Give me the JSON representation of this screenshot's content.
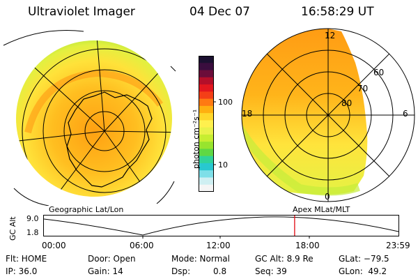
{
  "header": {
    "instrument": "Ultraviolet Imager",
    "date": "04 Dec 07",
    "time": "16:58:29 UT"
  },
  "colorbar": {
    "unit_label": "photon cm⁻²s⁻¹",
    "ticks": [
      "100",
      "10"
    ],
    "colors": [
      "#1b1030",
      "#3a0d3e",
      "#6b0d3a",
      "#b40f2a",
      "#e3171f",
      "#f43f17",
      "#ff7a12",
      "#ffb010",
      "#ffd72a",
      "#fff04e",
      "#e9f24a",
      "#c7ee31",
      "#98e42e",
      "#5fd844",
      "#2fd39b",
      "#28c8d0",
      "#7edfe8",
      "#cfeff2",
      "#f5f5f5"
    ]
  },
  "geo_panel": {
    "caption": "Geographic Lat/Lon"
  },
  "apex_panel": {
    "caption": "Apex MLat/MLT",
    "mlt_labels": {
      "top": "12",
      "left": "18",
      "right": "6",
      "bottom": "0"
    },
    "lat_labels": [
      "60",
      "70",
      "80"
    ]
  },
  "altitude_plot": {
    "ylabel": "GC Alt",
    "yticks": [
      "9.0",
      "1.8"
    ],
    "xticks": [
      "00:00",
      "06:00",
      "12:00",
      "18:00",
      "23:59"
    ],
    "current_time_fraction": 0.707
  },
  "status": {
    "flt": "Flt: HOME",
    "ip": "IP: 36.0",
    "door": "Door: Open",
    "gain": "Gain: 14",
    "mode": "Mode: Normal",
    "dsp_label": "Dsp:",
    "dsp_value": "0.8",
    "gc_alt": "GC Alt: 8.9 Re",
    "seq": "Seq: 39",
    "glat": "GLat: −79.5",
    "glon": "GLon:  49.2"
  }
}
